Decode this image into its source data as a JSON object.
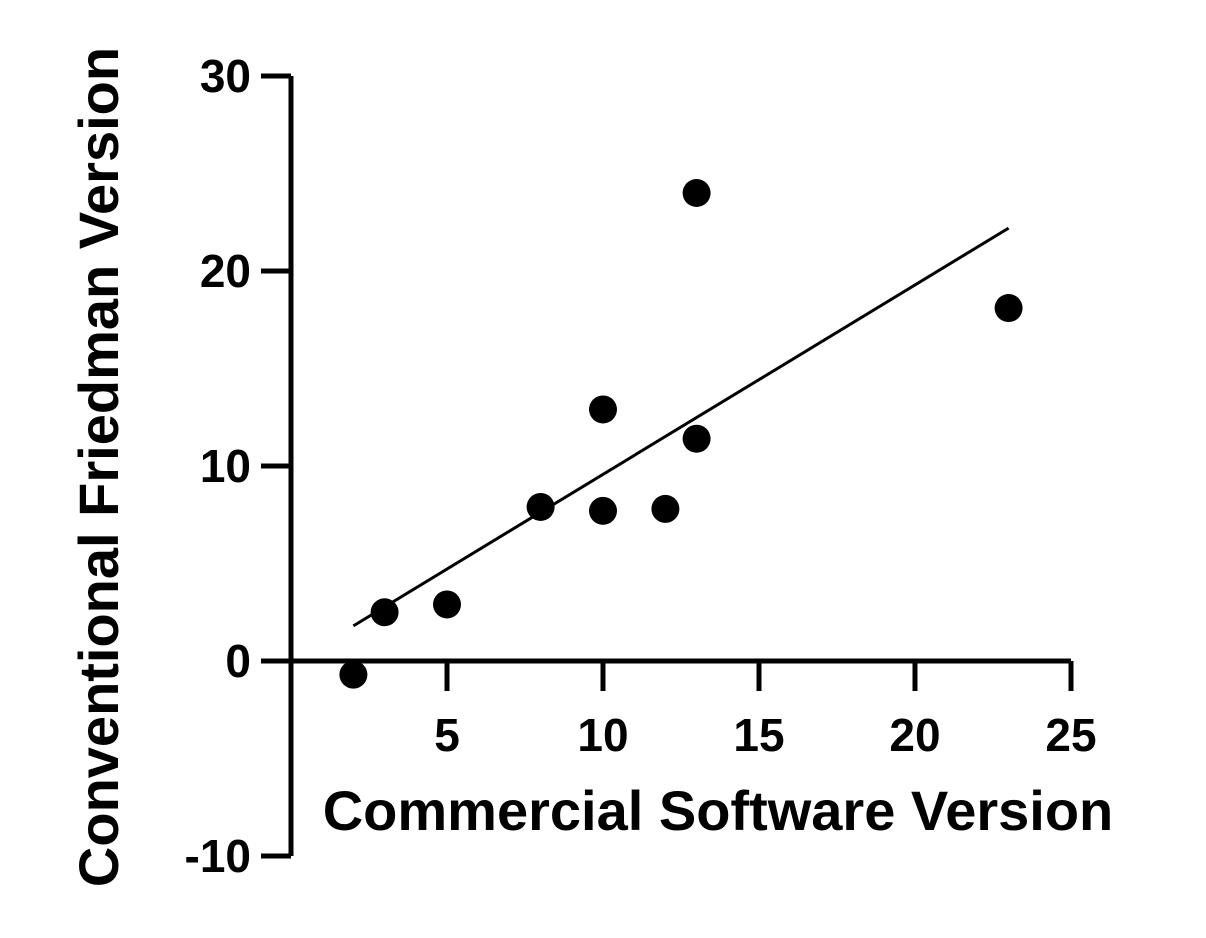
{
  "chart_data": {
    "type": "scatter",
    "title": "",
    "xlabel": "Commercial Software Version",
    "ylabel": "Conventional Friedman Version",
    "xlim": [
      0,
      25
    ],
    "ylim": [
      -10,
      30
    ],
    "x_ticks": [
      5,
      10,
      15,
      20,
      25
    ],
    "y_ticks": [
      -10,
      0,
      10,
      20,
      30
    ],
    "x_tick_labels": [
      "5",
      "10",
      "15",
      "20",
      "25"
    ],
    "y_tick_labels": [
      "-10",
      "0",
      "10",
      "20",
      "30"
    ],
    "grid": false,
    "legend": "none",
    "marker_color": "#000000",
    "points": [
      {
        "x": 2,
        "y": -0.7
      },
      {
        "x": 3,
        "y": 2.5
      },
      {
        "x": 5,
        "y": 2.9
      },
      {
        "x": 8,
        "y": 7.9
      },
      {
        "x": 10,
        "y": 7.7
      },
      {
        "x": 10,
        "y": 12.9
      },
      {
        "x": 12,
        "y": 7.8
      },
      {
        "x": 13,
        "y": 11.4
      },
      {
        "x": 13,
        "y": 24.0
      },
      {
        "x": 23,
        "y": 18.1
      }
    ],
    "fit_line": {
      "x": [
        2,
        23
      ],
      "y": [
        1.8,
        22.2
      ]
    }
  }
}
